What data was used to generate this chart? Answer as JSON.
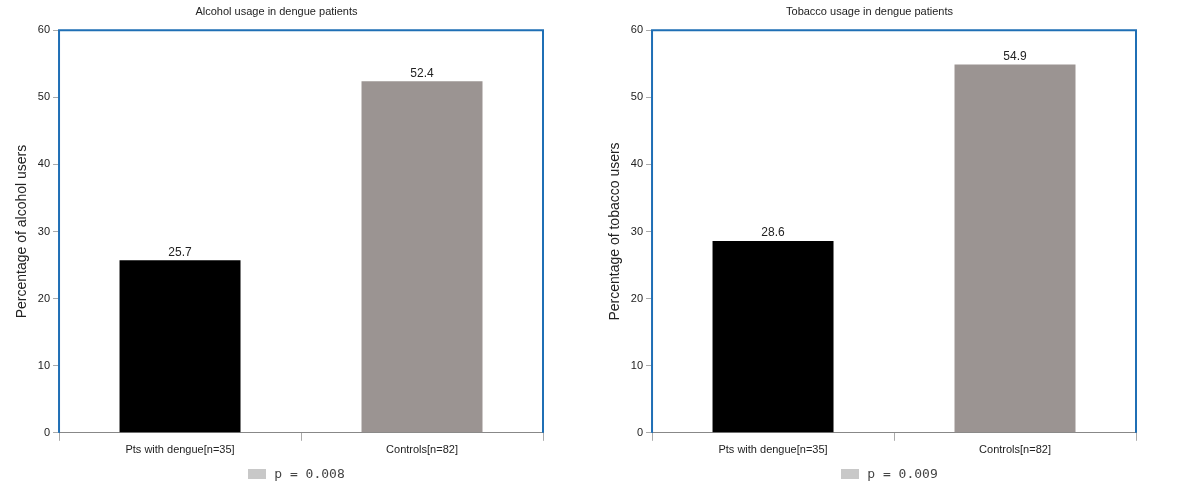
{
  "chart_data": [
    {
      "type": "bar",
      "title": "Alcohol usage in dengue patients",
      "ylabel": "Percentage of alcohol users",
      "categories": [
        "Pts with dengue[n=35]",
        "Controls[n=82]"
      ],
      "values": [
        25.7,
        52.4
      ],
      "colors": [
        "#000000",
        "#9b9492"
      ],
      "ylim": [
        0,
        60
      ],
      "yticks": [
        0,
        10,
        20,
        30,
        40,
        50,
        60
      ],
      "data_labels": true,
      "grid": false,
      "legend": false,
      "annotations": [
        "p = 0.008"
      ]
    },
    {
      "type": "bar",
      "title": "Tobacco usage in dengue patients",
      "ylabel": "Percentage of tobacco users",
      "categories": [
        "Pts with dengue[n=35]",
        "Controls[n=82]"
      ],
      "values": [
        28.6,
        54.9
      ],
      "colors": [
        "#000000",
        "#9b9492"
      ],
      "ylim": [
        0,
        60
      ],
      "yticks": [
        0,
        10,
        20,
        30,
        40,
        50,
        60
      ],
      "data_labels": true,
      "grid": false,
      "legend": false,
      "annotations": [
        "p = 0.009"
      ]
    }
  ]
}
